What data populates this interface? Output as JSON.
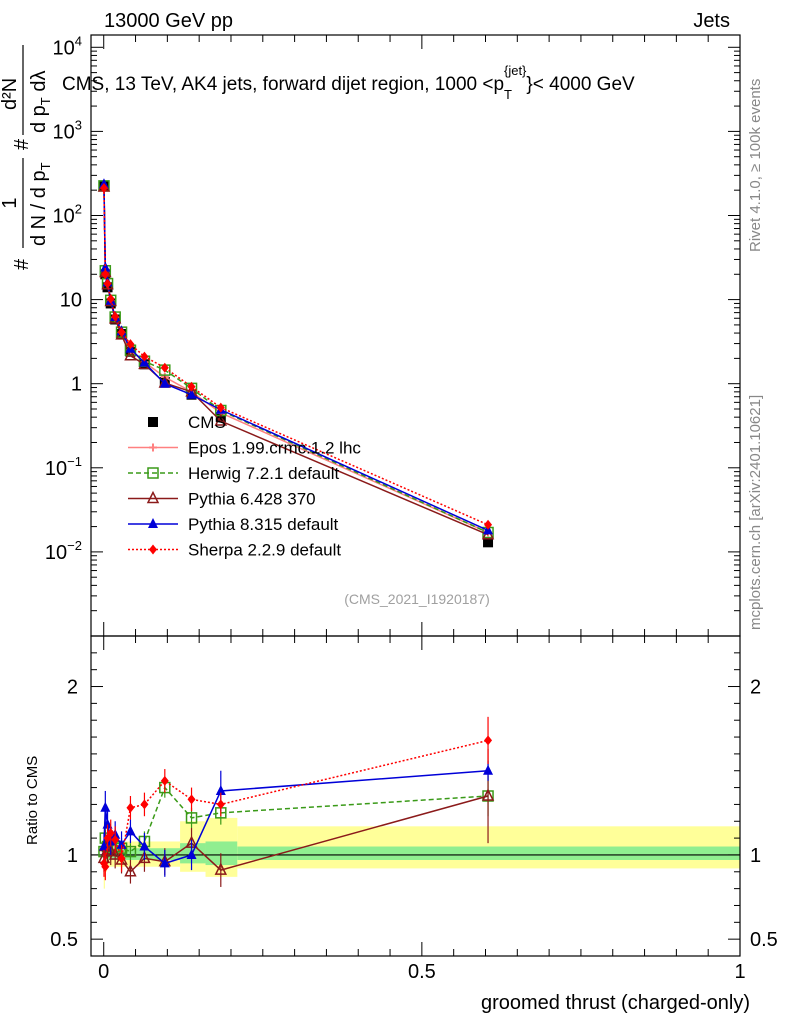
{
  "header": {
    "left": "13000 GeV pp",
    "right": "Jets"
  },
  "side_labels": {
    "rivet": "Rivet 4.1.0, ≥ 100k events",
    "mcplots": "mcplots.cern.ch [arXiv:2401.10621]"
  },
  "chart_data": [
    {
      "type": "line",
      "panel": "main",
      "title": "CMS, 13 TeV, AK4 jets, forward dijet region, 1000 <p_T^{jet}< 4000 GeV",
      "title_parts": {
        "pre": "CMS, 13 TeV, AK4 jets, forward dijet region, 1000 <p",
        "sub": "T",
        "sup": "{jet}",
        "post": "}< 4000 GeV"
      },
      "ylabel": "1/N dN/dλ",
      "ylabel_display": {
        "frac_num": "1",
        "frac_den": "d N / d p",
        "frac_den_sub": "T",
        "rhs_num": "d²N",
        "rhs_den": "d p",
        "rhs_den_sub": "T",
        "rhs_den_tail": " dλ",
        "hash": "#"
      },
      "yscale": "log",
      "ylim": [
        0.001,
        14000
      ],
      "xlim": [
        -0.02,
        1.0
      ],
      "yticks": [
        {
          "value": 0.01,
          "base": "10",
          "exp": "−2"
        },
        {
          "value": 0.1,
          "base": "10",
          "exp": "−1"
        },
        {
          "value": 1,
          "base": "1",
          "exp": ""
        },
        {
          "value": 10,
          "base": "10",
          "exp": ""
        },
        {
          "value": 100,
          "base": "10",
          "exp": "2"
        },
        {
          "value": 1000,
          "base": "10",
          "exp": "3"
        },
        {
          "value": 10000,
          "base": "10",
          "exp": "4"
        }
      ],
      "watermark": "(CMS_2021_I1920187)",
      "series": [
        {
          "name": "CMS",
          "color": "#000000",
          "marker": "square",
          "dash": "",
          "x": [
            0.0004,
            0.0025,
            0.006,
            0.011,
            0.018,
            0.028,
            0.042,
            0.064,
            0.096,
            0.138,
            0.184,
            0.604
          ],
          "y": [
            222,
            20,
            14,
            9,
            5.8,
            3.9,
            2.4,
            1.7,
            1.05,
            0.74,
            0.4,
            0.013
          ]
        },
        {
          "name": "Epos 1.99.crmc.1.2 lhc",
          "color": "#ff8080",
          "marker": "cross",
          "dash": "",
          "x": [
            0.0004,
            0.0025,
            0.006,
            0.011,
            0.018,
            0.028,
            0.042,
            0.064,
            0.096,
            0.138,
            0.184,
            0.604
          ],
          "y": [
            214,
            21,
            15,
            9.6,
            6.1,
            4.0,
            2.5,
            1.8,
            1.2,
            0.8,
            0.45,
            0.017
          ]
        },
        {
          "name": "Herwig 7.2.1 default",
          "color": "#3a9a18",
          "marker": "open-square",
          "dash": "5,3",
          "x": [
            0.0004,
            0.0025,
            0.006,
            0.011,
            0.018,
            0.028,
            0.042,
            0.064,
            0.096,
            0.138,
            0.184,
            0.604
          ],
          "y": [
            225,
            22,
            15.5,
            9.8,
            6.2,
            4.1,
            2.5,
            1.85,
            1.45,
            0.88,
            0.48,
            0.017
          ]
        },
        {
          "name": "Pythia 6.428 370",
          "color": "#8b1a1a",
          "marker": "open-triangle",
          "dash": "",
          "x": [
            0.0004,
            0.0025,
            0.006,
            0.011,
            0.018,
            0.028,
            0.042,
            0.064,
            0.096,
            0.138,
            0.184,
            0.604
          ],
          "y": [
            218,
            21,
            15,
            9.5,
            5.9,
            3.8,
            2.15,
            1.7,
            1.02,
            0.8,
            0.36,
            0.016
          ]
        },
        {
          "name": "Pythia 8.315 default",
          "color": "#0000d8",
          "marker": "triangle",
          "dash": "",
          "x": [
            0.0004,
            0.0025,
            0.006,
            0.011,
            0.018,
            0.028,
            0.042,
            0.064,
            0.096,
            0.138,
            0.184,
            0.604
          ],
          "y": [
            235,
            24,
            16,
            9.7,
            6.2,
            4.2,
            2.6,
            1.78,
            1.0,
            0.74,
            0.49,
            0.018
          ]
        },
        {
          "name": "Sherpa 2.2.9 default",
          "color": "#ff0000",
          "marker": "diamond",
          "dash": "2,2",
          "x": [
            0.0004,
            0.0025,
            0.006,
            0.011,
            0.018,
            0.028,
            0.042,
            0.064,
            0.096,
            0.138,
            0.184,
            0.604
          ],
          "y": [
            212,
            20,
            15.5,
            10.2,
            6.3,
            4.1,
            2.95,
            2.1,
            1.55,
            0.92,
            0.52,
            0.021
          ]
        }
      ]
    },
    {
      "type": "line",
      "panel": "ratio",
      "ylabel": "Ratio to CMS",
      "xlabel": "groomed thrust (charged-only)",
      "ylim": [
        0.4,
        2.3
      ],
      "xlim": [
        -0.02,
        1.0
      ],
      "yticks": [
        {
          "value": 0.5,
          "label": "0.5"
        },
        {
          "value": 1,
          "label": "1"
        },
        {
          "value": 2,
          "label": "2"
        }
      ],
      "xticks": [
        {
          "value": 0,
          "label": "0"
        },
        {
          "value": 0.5,
          "label": "0.5"
        },
        {
          "value": 1,
          "label": "1"
        }
      ],
      "bands": {
        "inner_color": "#90ee90",
        "outer_color": "#ffff99",
        "bins": [
          {
            "x0": 0.0,
            "x1": 0.002,
            "inner": [
              0.93,
              1.07
            ],
            "outer": [
              0.8,
              1.2
            ]
          },
          {
            "x0": 0.002,
            "x1": 0.005,
            "inner": [
              0.95,
              1.05
            ],
            "outer": [
              0.9,
              1.1
            ]
          },
          {
            "x0": 0.005,
            "x1": 0.12,
            "inner": [
              0.97,
              1.04
            ],
            "outer": [
              0.93,
              1.08
            ]
          },
          {
            "x0": 0.12,
            "x1": 0.16,
            "inner": [
              0.95,
              1.07
            ],
            "outer": [
              0.9,
              1.2
            ]
          },
          {
            "x0": 0.16,
            "x1": 0.21,
            "inner": [
              0.94,
              1.08
            ],
            "outer": [
              0.87,
              1.22
            ]
          },
          {
            "x0": 0.21,
            "x1": 1.0,
            "inner": [
              0.97,
              1.05
            ],
            "outer": [
              0.92,
              1.17
            ]
          }
        ]
      },
      "series": [
        {
          "name": "Herwig 7.2.1 default",
          "x": [
            0.0004,
            0.0025,
            0.006,
            0.011,
            0.018,
            0.028,
            0.042,
            0.064,
            0.096,
            0.138,
            0.184,
            0.604
          ],
          "y": [
            1.02,
            1.1,
            1.05,
            1.06,
            1.05,
            1.04,
            1.02,
            1.08,
            1.4,
            1.22,
            1.25,
            1.35
          ],
          "err": [
            0.06,
            0.08,
            0.06,
            0.06,
            0.06,
            0.06,
            0.05,
            0.06,
            0.06,
            0.06,
            0.07,
            0.12
          ]
        },
        {
          "name": "Pythia 6.428 370",
          "x": [
            0.0004,
            0.0025,
            0.006,
            0.011,
            0.018,
            0.028,
            0.042,
            0.064,
            0.096,
            0.138,
            0.184,
            0.604
          ],
          "y": [
            0.98,
            1.05,
            1.03,
            1.02,
            1.0,
            0.97,
            0.9,
            0.98,
            0.96,
            1.07,
            0.91,
            1.35
          ],
          "err": [
            0.08,
            0.1,
            0.08,
            0.08,
            0.08,
            0.08,
            0.07,
            0.08,
            0.08,
            0.09,
            0.1,
            0.28
          ]
        },
        {
          "name": "Pythia 8.315 default",
          "x": [
            0.0004,
            0.0025,
            0.006,
            0.011,
            0.018,
            0.028,
            0.042,
            0.064,
            0.096,
            0.138,
            0.184,
            0.604
          ],
          "y": [
            1.05,
            1.28,
            1.18,
            1.08,
            1.12,
            1.06,
            1.14,
            1.05,
            0.95,
            1.0,
            1.38,
            1.5
          ],
          "err": [
            0.08,
            0.1,
            0.08,
            0.08,
            0.08,
            0.08,
            0.07,
            0.08,
            0.08,
            0.09,
            0.12,
            0.06
          ]
        },
        {
          "name": "Sherpa 2.2.9 default",
          "x": [
            0.0004,
            0.0025,
            0.006,
            0.011,
            0.018,
            0.028,
            0.042,
            0.064,
            0.096,
            0.138,
            0.184,
            0.604
          ],
          "y": [
            0.95,
            0.93,
            1.1,
            1.13,
            1.09,
            0.98,
            1.28,
            1.3,
            1.44,
            1.33,
            1.3,
            1.68
          ],
          "err": [
            0.08,
            0.08,
            0.08,
            0.08,
            0.08,
            0.08,
            0.07,
            0.07,
            0.07,
            0.07,
            0.07,
            0.14
          ]
        }
      ]
    }
  ]
}
